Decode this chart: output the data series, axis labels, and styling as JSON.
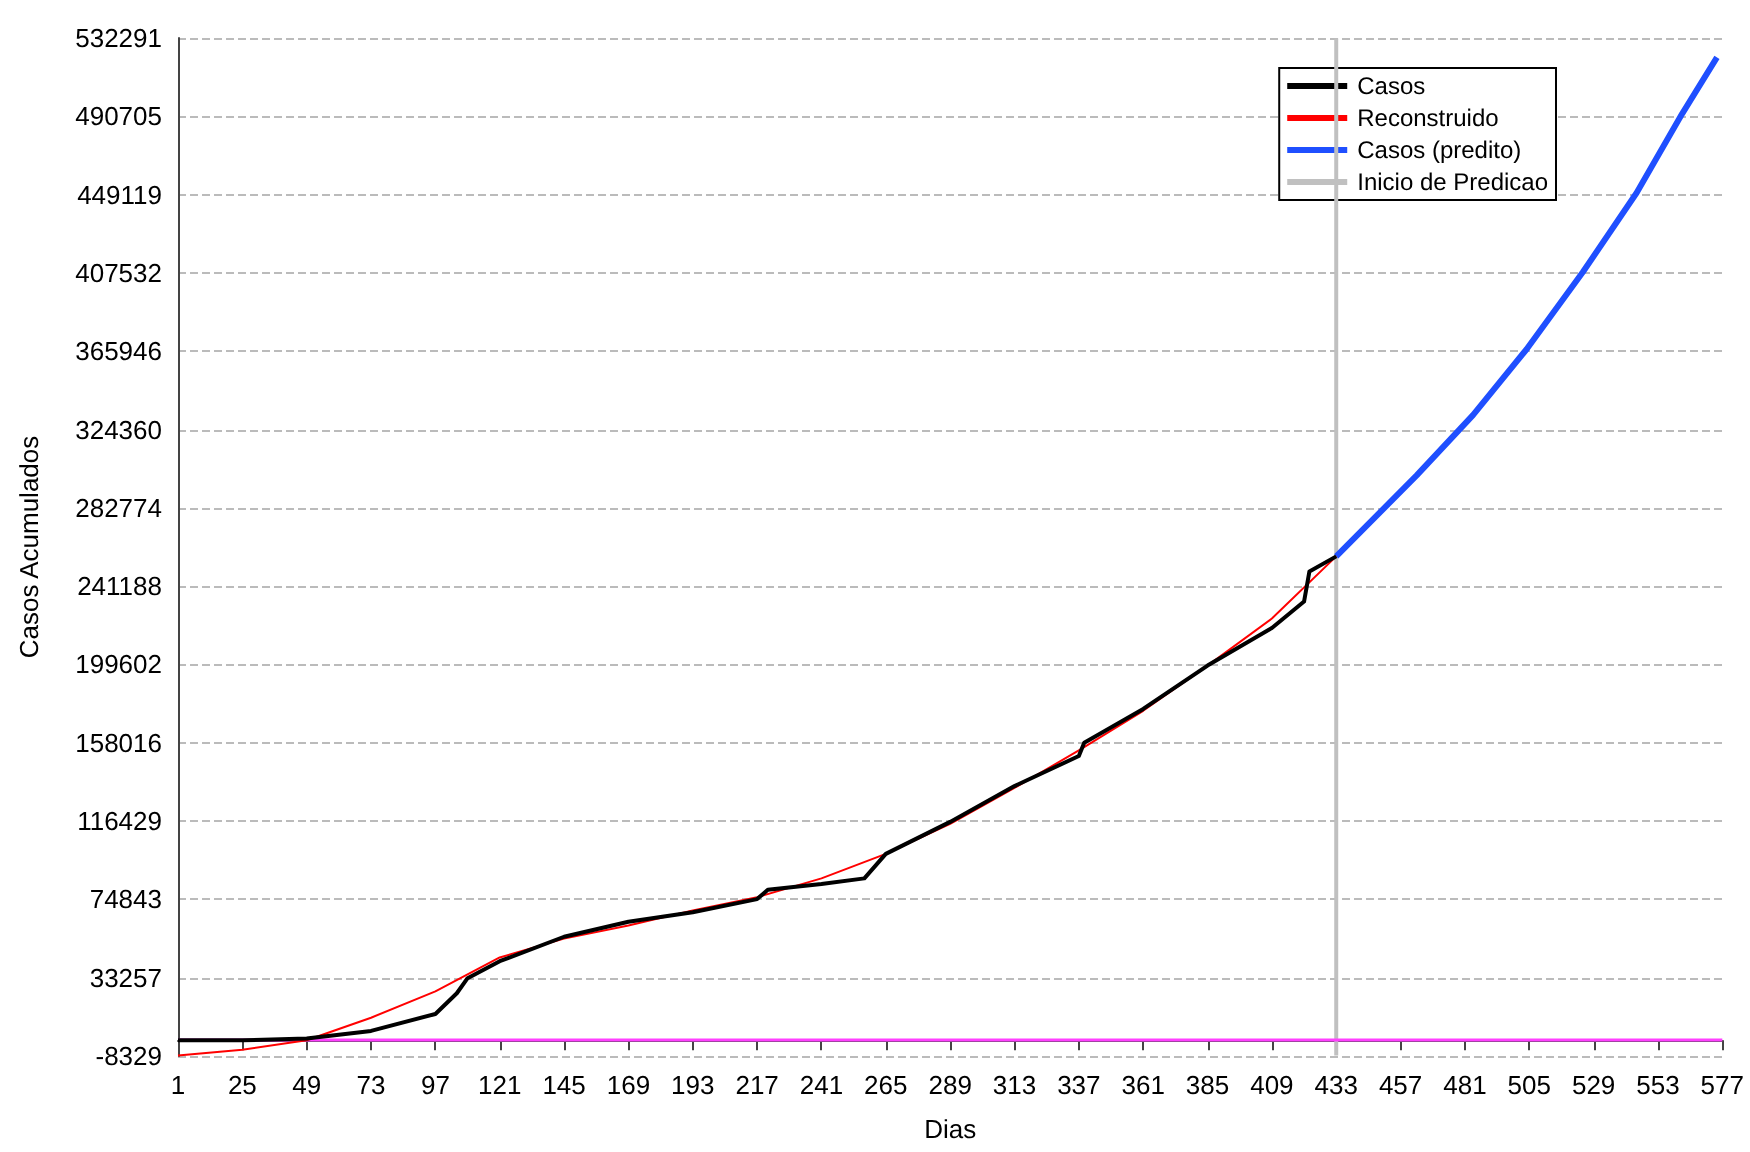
{
  "chart_data": {
    "type": "line",
    "xlabel": "Dias",
    "ylabel": "Casos Acumulados",
    "xlim": [
      1,
      577
    ],
    "xticks": [
      1,
      25,
      49,
      73,
      97,
      121,
      145,
      169,
      193,
      217,
      241,
      265,
      289,
      313,
      337,
      361,
      385,
      409,
      433,
      457,
      481,
      505,
      529,
      553,
      577
    ],
    "ylim": [
      -8329,
      532291
    ],
    "yticks": [
      {
        "value": -8329,
        "label": "-8329"
      },
      {
        "value": 33257,
        "label": "33257"
      },
      {
        "value": 74843,
        "label": "74843"
      },
      {
        "value": 116429,
        "label": "116429"
      },
      {
        "value": 158016,
        "label": "158016"
      },
      {
        "value": 199602,
        "label": "199602"
      },
      {
        "value": 241188,
        "label": "241188"
      },
      {
        "value": 282774,
        "label": "282774"
      },
      {
        "value": 324360,
        "label": "324360"
      },
      {
        "value": 365946,
        "label": "365946"
      },
      {
        "value": 407532,
        "label": "407532"
      },
      {
        "value": 449119,
        "label": "449119"
      },
      {
        "value": 490705,
        "label": "490705"
      },
      {
        "value": 532291,
        "label": "532291"
      }
    ],
    "grid": "y",
    "legend": "top right",
    "marker": "none",
    "line_style": "solid",
    "series": [
      {
        "name": "Casos",
        "color": "#000000",
        "x": [
          1,
          25,
          49,
          73,
          97,
          105,
          109,
          121,
          145,
          169,
          193,
          217,
          221,
          241,
          257,
          265,
          289,
          313,
          337,
          339,
          361,
          385,
          409,
          421,
          423,
          433
        ],
        "values": [
          0,
          0,
          1000,
          5000,
          14000,
          25000,
          33000,
          42000,
          55000,
          63000,
          68000,
          75000,
          80000,
          83000,
          86000,
          99000,
          116000,
          135000,
          151000,
          158000,
          176000,
          199000,
          219000,
          233000,
          249000,
          257000
        ]
      },
      {
        "name": "Reconstruido",
        "color": "#ff0000",
        "x": [
          1,
          25,
          49,
          73,
          97,
          121,
          145,
          169,
          193,
          217,
          241,
          265,
          289,
          313,
          337,
          361,
          385,
          409,
          433
        ],
        "values": [
          -8000,
          -5000,
          0,
          12000,
          26000,
          44000,
          54000,
          61000,
          69000,
          76000,
          86000,
          99000,
          115000,
          134000,
          154000,
          175000,
          199000,
          224000,
          257000
        ]
      },
      {
        "name": "Casos (predito)",
        "color": "#1f4fff",
        "x": [
          433,
          463,
          484,
          504,
          525,
          545,
          562,
          575
        ],
        "values": [
          257000,
          300000,
          332000,
          367000,
          408000,
          450000,
          492000,
          522000
        ]
      },
      {
        "name": "Inicio de Predicao",
        "color": "#c0c0c0",
        "x": [
          433,
          433
        ],
        "values": [
          -8000,
          532000
        ]
      }
    ],
    "ref_lines": [
      {
        "axis": "y",
        "value": 0,
        "color": "#ff40ff"
      }
    ]
  }
}
